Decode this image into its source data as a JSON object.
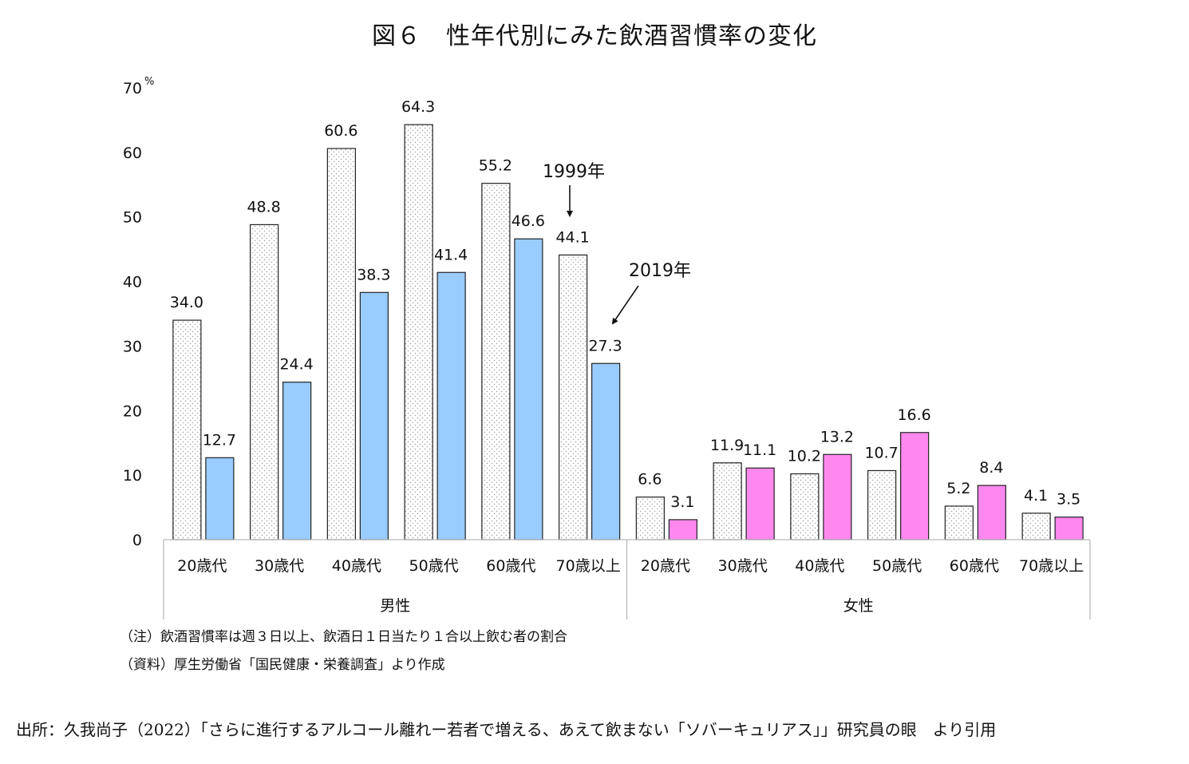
{
  "title": "図６　性年代別にみた飲酒習慣率の変化",
  "source": "出所：久我尚子（2022）「さらに進行するアルコール離れー若者で増える、あえて飲まない「ソバーキュリアス」」研究員の眼　より引用",
  "notes": {
    "note1": "（注）飲酒習慣率は週３日以上、飲酒日１日当たり１合以上飲む者の割合",
    "note2": "（資料）厚生労働省「国民健康・栄養調査」より作成"
  },
  "annotations": {
    "label_1999": "1999年",
    "label_2019": "2019年"
  },
  "chart_data": {
    "type": "bar",
    "title": "図６　性年代別にみた飲酒習慣率の変化",
    "y_unit": "%",
    "ylim": [
      0,
      70
    ],
    "yticks": [
      "0",
      "10",
      "20",
      "30",
      "40",
      "50",
      "60",
      "70"
    ],
    "grid": false,
    "groups": [
      {
        "name": "男性",
        "categories": [
          "20歳代",
          "30歳代",
          "40歳代",
          "50歳代",
          "60歳代",
          "70歳以上"
        ]
      },
      {
        "name": "女性",
        "categories": [
          "20歳代",
          "30歳代",
          "40歳代",
          "50歳代",
          "60歳代",
          "70歳以上"
        ]
      }
    ],
    "series": [
      {
        "name": "1999年",
        "values": [
          34.0,
          48.8,
          60.6,
          64.3,
          55.2,
          44.1,
          6.6,
          11.9,
          10.2,
          10.7,
          5.2,
          4.1
        ],
        "labels": [
          "34.0",
          "48.8",
          "60.6",
          "64.3",
          "55.2",
          "44.1",
          "6.6",
          "11.9",
          "10.2",
          "10.7",
          "5.2",
          "4.1"
        ],
        "fill": "dotted-white"
      },
      {
        "name": "2019年",
        "values": [
          12.7,
          24.4,
          38.3,
          41.4,
          46.6,
          27.3,
          3.1,
          11.1,
          13.2,
          16.6,
          8.4,
          3.5
        ],
        "labels": [
          "12.7",
          "24.4",
          "38.3",
          "41.4",
          "46.6",
          "27.3",
          "3.1",
          "11.1",
          "13.2",
          "16.6",
          "8.4",
          "3.5"
        ],
        "colors_by_group": [
          "#99ccff",
          "#ff88ee"
        ]
      }
    ]
  }
}
